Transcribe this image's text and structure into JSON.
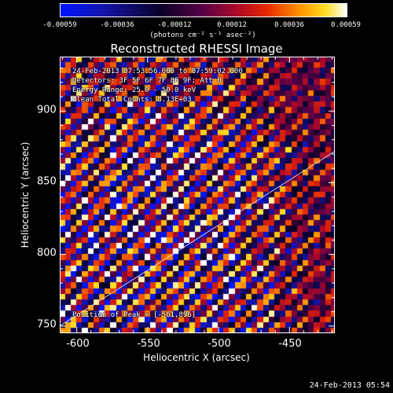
{
  "colorbar": {
    "ticks": [
      "-0.00059",
      "-0.00036",
      "-0.00012",
      "0.00012",
      "0.00036",
      "0.00059"
    ],
    "units": "(photons cm⁻² s⁻¹ asec⁻²)",
    "min": -0.00059,
    "max": 0.00059
  },
  "image": {
    "title": "Reconstructed RHESSI Image",
    "info": [
      "24-Feb-2013 07:53:56.000 to 07:59:02.000",
      "Detectors: 3F 5F 6F 7F 8F 9F; Att 0",
      "Energy Range: 25.0 - 50.0 keV",
      "Clean   Total Counts: 8.13E+03"
    ],
    "peak_label": "Position of Peak = [-561,896]",
    "peak": [
      -561,
      896
    ]
  },
  "axes": {
    "xlabel": "Heliocentric X (arcsec)",
    "ylabel": "Heliocentric Y (arcsec)",
    "xticks": [
      "-600",
      "-550",
      "-500",
      "-450"
    ],
    "yticks": [
      "900",
      "850",
      "800",
      "750"
    ],
    "xlim": [
      -612,
      -418
    ],
    "ylim": [
      745,
      938
    ]
  },
  "timestamp": "24-Feb-2013 05:54"
}
